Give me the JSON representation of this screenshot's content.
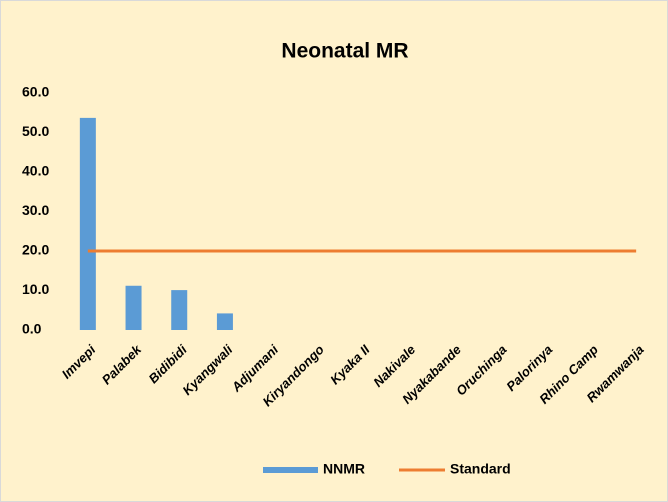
{
  "chart_data": {
    "type": "bar",
    "title": "Neonatal MR",
    "categories": [
      "Imvepi",
      "Palabek",
      "Bidibidi",
      "Kyangwali",
      "Adjumani",
      "Kiryandongo",
      "Kyaka II",
      "Nakivale",
      "Nyakabande",
      "Oruchinga",
      "Palorinya",
      "Rhino Camp",
      "Rwamwanja"
    ],
    "series": [
      {
        "name": "NNMR",
        "color": "#5b9bd5",
        "values": [
          53.7,
          11.2,
          10.1,
          4.2,
          0,
          0,
          0,
          0,
          0,
          0,
          0,
          0,
          0
        ]
      },
      {
        "name": "Standard",
        "color": "#ed7d31",
        "type": "line",
        "values": [
          20,
          20,
          20,
          20,
          20,
          20,
          20,
          20,
          20,
          20,
          20,
          20,
          20
        ]
      }
    ],
    "ylim": [
      0,
      60
    ],
    "yticks": [
      {
        "value": 0,
        "label": "0.0"
      },
      {
        "value": 10,
        "label": "10.0"
      },
      {
        "value": 20,
        "label": "20.0"
      },
      {
        "value": 30,
        "label": "30.0"
      },
      {
        "value": 40,
        "label": "40.0"
      },
      {
        "value": 50,
        "label": "50.0"
      },
      {
        "value": 60,
        "label": "60.0"
      }
    ],
    "legend": "bottom"
  }
}
